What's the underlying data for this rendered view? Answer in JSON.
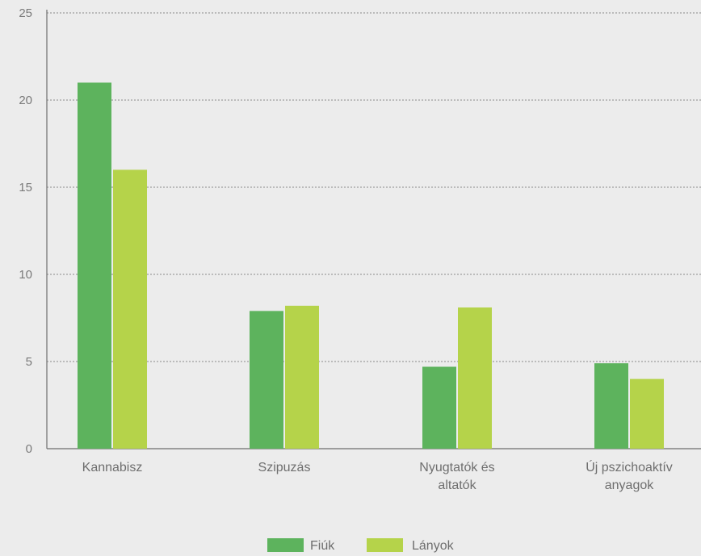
{
  "chart_data": {
    "type": "bar",
    "title": "",
    "xlabel": "",
    "ylabel": "",
    "ylim": [
      0,
      25
    ],
    "yticks": [
      0,
      5,
      10,
      15,
      20,
      25
    ],
    "grid": true,
    "legend_position": "bottom",
    "categories": [
      [
        "Kannabisz"
      ],
      [
        "Szipuzás"
      ],
      [
        "Nyugtatók és",
        "altatók"
      ],
      [
        "Új pszichoaktív",
        "anyagok"
      ]
    ],
    "series": [
      {
        "name": "Fiúk",
        "color": "#5db35d",
        "values": [
          21,
          7.9,
          4.7,
          4.9
        ]
      },
      {
        "name": "Lányok",
        "color": "#b5d34a",
        "values": [
          16,
          8.2,
          8.1,
          4.0
        ]
      }
    ]
  }
}
